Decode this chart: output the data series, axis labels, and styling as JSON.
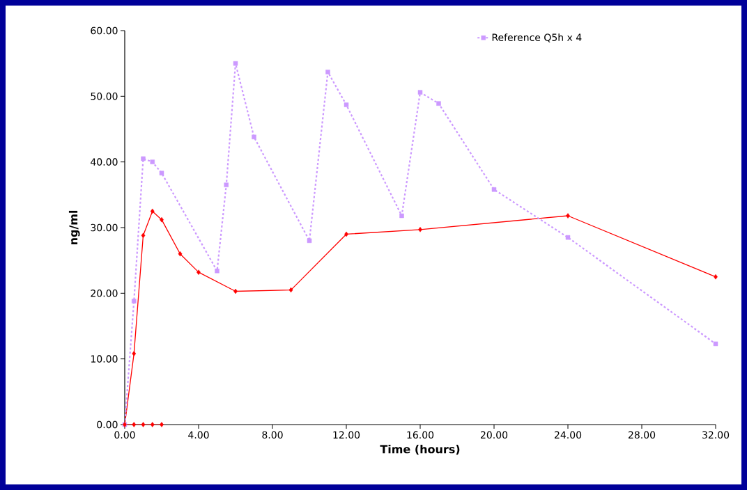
{
  "chart_data": {
    "type": "line",
    "xlabel": "Time (hours)",
    "ylabel": "ng/ml",
    "xlim": [
      0,
      32
    ],
    "ylim": [
      0,
      60
    ],
    "xticks": [
      {
        "value": 0,
        "label": "0.00"
      },
      {
        "value": 4,
        "label": "4.00"
      },
      {
        "value": 8,
        "label": "8.00"
      },
      {
        "value": 12,
        "label": "12.00"
      },
      {
        "value": 16,
        "label": "16.00"
      },
      {
        "value": 20,
        "label": "20.00"
      },
      {
        "value": 24,
        "label": "24.00"
      },
      {
        "value": 28,
        "label": "28.00"
      },
      {
        "value": 32,
        "label": "32.00"
      }
    ],
    "yticks": [
      {
        "value": 0,
        "label": "0.00"
      },
      {
        "value": 10,
        "label": "10.00"
      },
      {
        "value": 20,
        "label": "20.00"
      },
      {
        "value": 30,
        "label": "30.00"
      },
      {
        "value": 40,
        "label": "40.00"
      },
      {
        "value": 50,
        "label": "50.00"
      },
      {
        "value": 60,
        "label": "60.00"
      }
    ],
    "grid": false,
    "legend": "top right",
    "series": [
      {
        "color": "#ff0000",
        "marker": "diamond",
        "line_style": "solid",
        "x": [
          0,
          0.5,
          1,
          1.5,
          2,
          3,
          4,
          6,
          9,
          12,
          16,
          24,
          32
        ],
        "values": [
          0,
          10.8,
          28.8,
          32.5,
          31.2,
          26,
          23.2,
          20.3,
          20.5,
          29,
          29.7,
          31.8,
          22.5
        ]
      },
      {
        "name": "Reference Q5h x 4",
        "color": "#cc99ff",
        "marker": "square",
        "line_style": "dashed",
        "x": [
          0,
          0.5,
          1,
          1.5,
          2,
          5,
          5.5,
          6,
          7,
          10,
          11,
          12,
          15,
          16,
          17,
          20,
          24,
          32
        ],
        "values": [
          0,
          18.8,
          40.5,
          40,
          38.3,
          23.4,
          36.5,
          55,
          43.8,
          28,
          53.7,
          48.7,
          31.8,
          50.6,
          48.9,
          35.8,
          28.5,
          12.3
        ]
      },
      {
        "color": "#ff0000",
        "marker": "diamond",
        "line_style": "solid",
        "x": [
          0,
          0.5,
          1,
          1.5,
          2
        ],
        "values": [
          0,
          0,
          0,
          0,
          0
        ]
      }
    ]
  }
}
